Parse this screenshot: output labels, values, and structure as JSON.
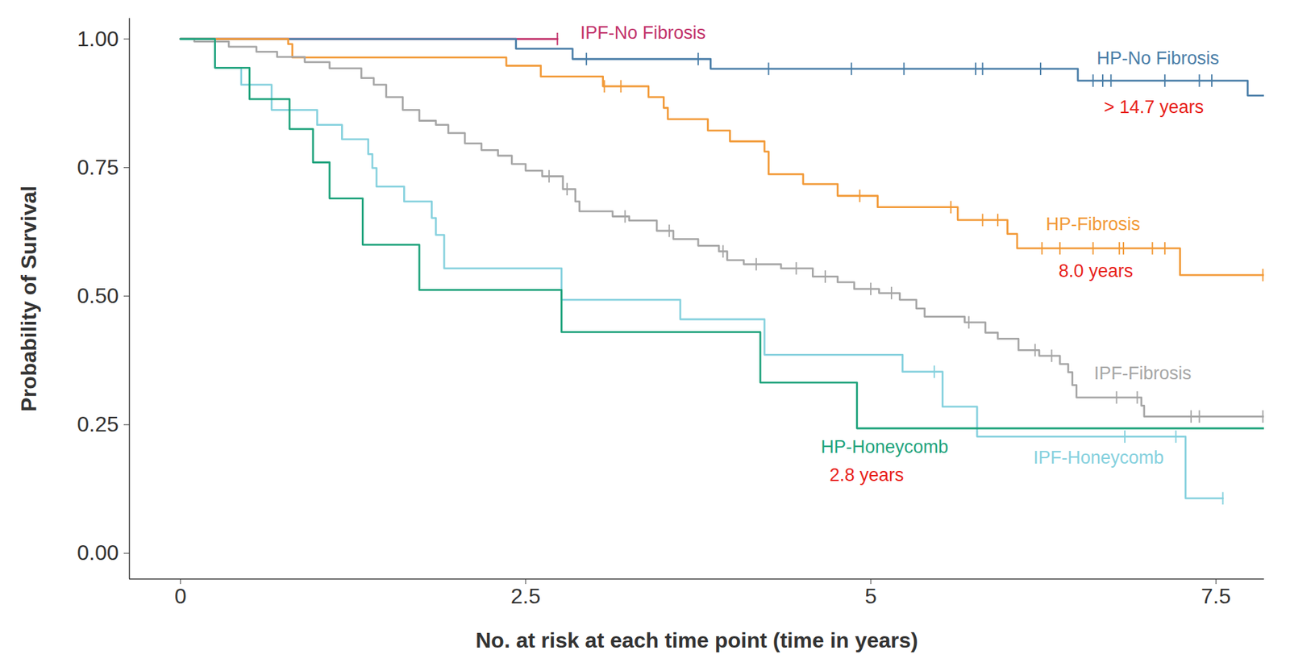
{
  "chart_data": {
    "type": "line",
    "line_style": "step",
    "grid": false,
    "xlabel": "No. at risk at each time point (time in years)",
    "ylabel": "Probability of Survival",
    "xlim": [
      -0.37,
      7.85
    ],
    "ylim": [
      -0.05,
      1.04
    ],
    "xticks": [
      0,
      2.5,
      5,
      7.5
    ],
    "yticks": [
      {
        "value": 0,
        "label": "0.00"
      },
      {
        "value": 0.25,
        "label": "0.25"
      },
      {
        "value": 0.5,
        "label": "0.50"
      },
      {
        "value": 0.75,
        "label": "0.75"
      },
      {
        "value": 1,
        "label": "1.00"
      }
    ],
    "series": [
      {
        "name": "IPF-No Fibrosis",
        "color": "#c2336b",
        "x": [
          0,
          2.73
        ],
        "values": [
          1,
          1
        ],
        "censored": {
          "x": [
            2.73
          ],
          "y": [
            1
          ]
        }
      },
      {
        "name": "HP-No Fibrosis",
        "color": "#4a7ea8",
        "x": [
          0,
          2.43,
          2.84,
          3.84,
          6.5,
          7.73,
          7.85
        ],
        "values": [
          1,
          0.981,
          0.961,
          0.942,
          0.919,
          0.89,
          0.89
        ],
        "censored": {
          "x": [
            2.94,
            3.75,
            4.26,
            4.86,
            5.24,
            5.76,
            5.81,
            6.23,
            6.61,
            6.68,
            6.74,
            7.13,
            7.38,
            7.47
          ],
          "y": [
            0.961,
            0.961,
            0.942,
            0.942,
            0.942,
            0.942,
            0.942,
            0.942,
            0.919,
            0.919,
            0.919,
            0.919,
            0.919,
            0.919
          ]
        }
      },
      {
        "name": "HP-Fibrosis",
        "color": "#f29a38",
        "x": [
          0,
          0.78,
          0.81,
          2.36,
          2.61,
          3.06,
          3.39,
          3.5,
          3.53,
          3.82,
          3.98,
          4.23,
          4.26,
          4.51,
          4.76,
          5.05,
          5.63,
          5.99,
          6.06,
          7.24,
          7.85
        ],
        "values": [
          1,
          0.99,
          0.964,
          0.948,
          0.927,
          0.908,
          0.887,
          0.866,
          0.844,
          0.822,
          0.801,
          0.781,
          0.737,
          0.718,
          0.695,
          0.673,
          0.648,
          0.621,
          0.593,
          0.541,
          0.541
        ],
        "censored": {
          "x": [
            3.07,
            3.19,
            4.92,
            5.58,
            5.81,
            5.92,
            6.24,
            6.37,
            6.61,
            6.8,
            6.83,
            7.04,
            7.13,
            7.84
          ],
          "y": [
            0.908,
            0.908,
            0.695,
            0.673,
            0.648,
            0.648,
            0.593,
            0.593,
            0.593,
            0.593,
            0.593,
            0.593,
            0.593,
            0.541
          ]
        }
      },
      {
        "name": "IPF-Fibrosis",
        "color": "#a6a6a6",
        "x": [
          0,
          0.1,
          0.35,
          0.55,
          0.7,
          0.9,
          1.08,
          1.31,
          1.4,
          1.49,
          1.61,
          1.73,
          1.85,
          1.94,
          2.06,
          2.18,
          2.3,
          2.4,
          2.5,
          2.62,
          2.77,
          2.86,
          2.89,
          3.13,
          3.25,
          3.45,
          3.57,
          3.75,
          3.9,
          3.96,
          4.08,
          4.35,
          4.58,
          4.76,
          4.88,
          5.06,
          5.21,
          5.33,
          5.39,
          5.68,
          5.83,
          5.92,
          6.07,
          6.22,
          6.37,
          6.43,
          6.46,
          6.49,
          6.96,
          6.98,
          7.85
        ],
        "values": [
          1,
          0.995,
          0.985,
          0.975,
          0.965,
          0.955,
          0.943,
          0.924,
          0.911,
          0.887,
          0.862,
          0.841,
          0.833,
          0.817,
          0.797,
          0.784,
          0.773,
          0.757,
          0.744,
          0.733,
          0.708,
          0.684,
          0.665,
          0.655,
          0.647,
          0.627,
          0.611,
          0.598,
          0.587,
          0.57,
          0.562,
          0.554,
          0.538,
          0.527,
          0.514,
          0.506,
          0.493,
          0.476,
          0.46,
          0.449,
          0.429,
          0.417,
          0.395,
          0.384,
          0.368,
          0.352,
          0.327,
          0.303,
          0.287,
          0.266,
          0.266
        ],
        "censored": {
          "x": [
            2.67,
            2.8,
            3.22,
            3.54,
            3.93,
            4.17,
            4.46,
            4.67,
            5.0,
            5.15,
            5.71,
            6.19,
            6.31,
            6.78,
            6.93,
            7.32,
            7.38,
            7.84
          ],
          "y": [
            0.733,
            0.708,
            0.655,
            0.627,
            0.587,
            0.562,
            0.554,
            0.538,
            0.514,
            0.506,
            0.449,
            0.395,
            0.384,
            0.303,
            0.303,
            0.266,
            0.266,
            0.266
          ]
        }
      },
      {
        "name": "IPF-Honeycomb",
        "color": "#86d1de",
        "x": [
          0,
          0.25,
          0.44,
          0.66,
          0.99,
          1.17,
          1.36,
          1.39,
          1.42,
          1.62,
          1.82,
          1.85,
          1.91,
          2.76,
          3.62,
          4.23,
          5.23,
          5.52,
          5.77,
          7.28,
          7.55
        ],
        "values": [
          1,
          0.944,
          0.911,
          0.862,
          0.833,
          0.805,
          0.776,
          0.749,
          0.713,
          0.684,
          0.652,
          0.619,
          0.554,
          0.493,
          0.455,
          0.386,
          0.353,
          0.285,
          0.227,
          0.107,
          0.107
        ],
        "censored": {
          "x": [
            5.46,
            6.84,
            7.21,
            7.55
          ],
          "y": [
            0.353,
            0.227,
            0.227,
            0.107
          ]
        }
      },
      {
        "name": "HP-Honeycomb",
        "color": "#1fa37c",
        "x": [
          0,
          0.25,
          0.5,
          0.79,
          0.96,
          1.08,
          1.32,
          1.73,
          2.76,
          4.2,
          4.9,
          7.85
        ],
        "values": [
          1,
          0.944,
          0.883,
          0.825,
          0.76,
          0.69,
          0.6,
          0.512,
          0.43,
          0.332,
          0.243,
          0.243
        ],
        "censored": {
          "x": [],
          "y": []
        }
      }
    ],
    "annotations": [
      {
        "text": "IPF-No Fibrosis",
        "x": 3.35,
        "y": 1.011,
        "color": "#c2336b"
      },
      {
        "text": "HP-No Fibrosis",
        "x": 7.08,
        "y": 0.962,
        "color": "#4a7ea8"
      },
      {
        "text": "> 14.7 years",
        "x": 7.05,
        "y": 0.867,
        "color": "#e8221b"
      },
      {
        "text": "HP-Fibrosis",
        "x": 6.61,
        "y": 0.64,
        "color": "#f29a38"
      },
      {
        "text": "8.0 years",
        "x": 6.63,
        "y": 0.549,
        "color": "#e8221b"
      },
      {
        "text": "IPF-Fibrosis",
        "x": 6.97,
        "y": 0.35,
        "color": "#a6a6a6"
      },
      {
        "text": "HP-Honeycomb",
        "x": 5.1,
        "y": 0.206,
        "color": "#1fa37c"
      },
      {
        "text": "2.8 years",
        "x": 4.97,
        "y": 0.152,
        "color": "#e8221b"
      },
      {
        "text": "IPF-Honeycomb",
        "x": 6.65,
        "y": 0.186,
        "color": "#86d1de"
      }
    ]
  }
}
